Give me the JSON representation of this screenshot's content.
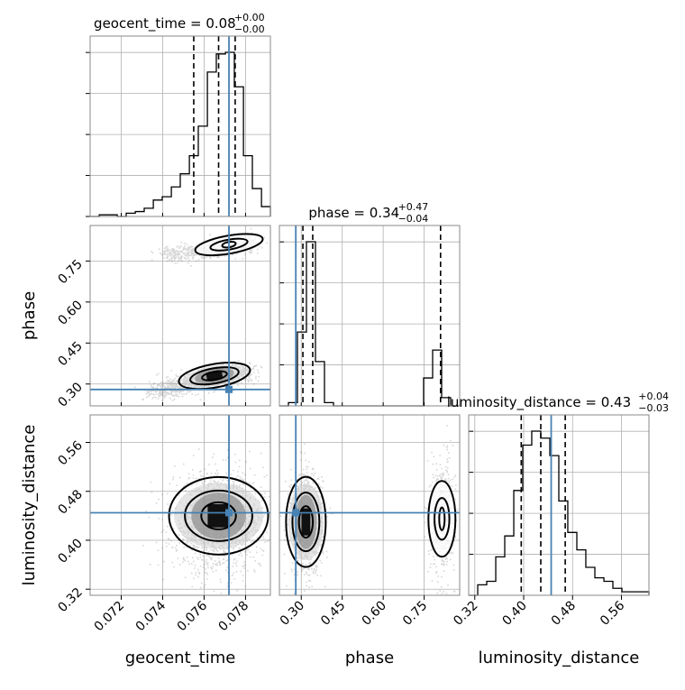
{
  "colors": {
    "truth": "#4682b4",
    "hist": "#000000",
    "grid": "#b0b0b0",
    "frame": "#888888"
  },
  "chart_data": {
    "type": "corner",
    "parameters": [
      "geocent_time",
      "phase",
      "luminosity_distance"
    ],
    "truths": {
      "geocent_time": 0.0772,
      "phase": 0.28,
      "luminosity_distance": 0.445
    },
    "titles": {
      "geocent_time": {
        "text": "geocent_time = 0.08",
        "sup": "+0.00",
        "sub": "−0.00"
      },
      "phase": {
        "text": "phase = 0.34",
        "sup": "+0.47",
        "sub": "−0.04"
      },
      "luminosity_distance": {
        "text": "luminosity_distance = 0.43",
        "sup": "+0.04",
        "sub": "−0.03"
      }
    },
    "axes": {
      "geocent_time": {
        "range": [
          0.0705,
          0.0792
        ],
        "ticks": [
          0.072,
          0.074,
          0.076,
          0.078
        ],
        "ticklabels": [
          "0.072",
          "0.074",
          "0.076",
          "0.078"
        ],
        "label": "geocent_time"
      },
      "phase": {
        "range": [
          0.22,
          0.88
        ],
        "ticks": [
          0.3,
          0.45,
          0.6,
          0.75
        ],
        "ticklabels": [
          "0.30",
          "0.45",
          "0.60",
          "0.75"
        ],
        "label": "phase"
      },
      "luminosity_distance": {
        "range": [
          0.31,
          0.605
        ],
        "ticks": [
          0.32,
          0.4,
          0.48,
          0.56
        ],
        "ticklabels": [
          "0.32",
          "0.40",
          "0.48",
          "0.56"
        ],
        "label": "luminosity_distance"
      }
    },
    "quantiles": {
      "geocent_time": [
        0.0755,
        0.0767,
        0.0775
      ],
      "phase": [
        0.306,
        0.342,
        0.81
      ],
      "luminosity_distance": [
        0.396,
        0.428,
        0.468
      ]
    },
    "histograms": {
      "geocent_time": {
        "edges": [
          0.0705,
          0.07094,
          0.07137,
          0.07181,
          0.07224,
          0.07268,
          0.07311,
          0.07355,
          0.07398,
          0.07442,
          0.07485,
          0.07529,
          0.07572,
          0.07616,
          0.07659,
          0.07703,
          0.07746,
          0.0779,
          0.07833,
          0.07877,
          0.0792
        ],
        "counts": [
          0,
          1,
          1,
          0,
          2,
          3,
          5,
          10,
          12,
          18,
          26,
          37,
          55,
          88,
          99,
          100,
          79,
          37,
          17,
          6
        ]
      },
      "phase": {
        "edges": [
          0.22,
          0.253,
          0.286,
          0.319,
          0.352,
          0.385,
          0.418,
          0.451,
          0.484,
          0.517,
          0.55,
          0.583,
          0.616,
          0.649,
          0.682,
          0.715,
          0.748,
          0.781,
          0.814,
          0.847,
          0.88
        ],
        "counts": [
          0,
          2,
          45,
          100,
          27,
          2,
          0,
          0,
          0,
          0,
          0,
          0,
          0,
          0,
          0,
          0,
          17,
          34,
          5,
          0
        ]
      },
      "luminosity_distance": {
        "edges": [
          0.31,
          0.3248,
          0.3395,
          0.3543,
          0.369,
          0.3838,
          0.3985,
          0.4132,
          0.428,
          0.4428,
          0.4575,
          0.4722,
          0.487,
          0.5017,
          0.5165,
          0.5313,
          0.546,
          0.5608,
          0.5755,
          0.5902,
          0.605
        ],
        "counts": [
          0,
          3,
          4,
          11,
          17,
          30,
          43,
          47,
          45,
          40,
          27,
          18,
          13,
          8,
          5,
          4,
          2,
          1,
          1,
          1
        ]
      }
    }
  }
}
